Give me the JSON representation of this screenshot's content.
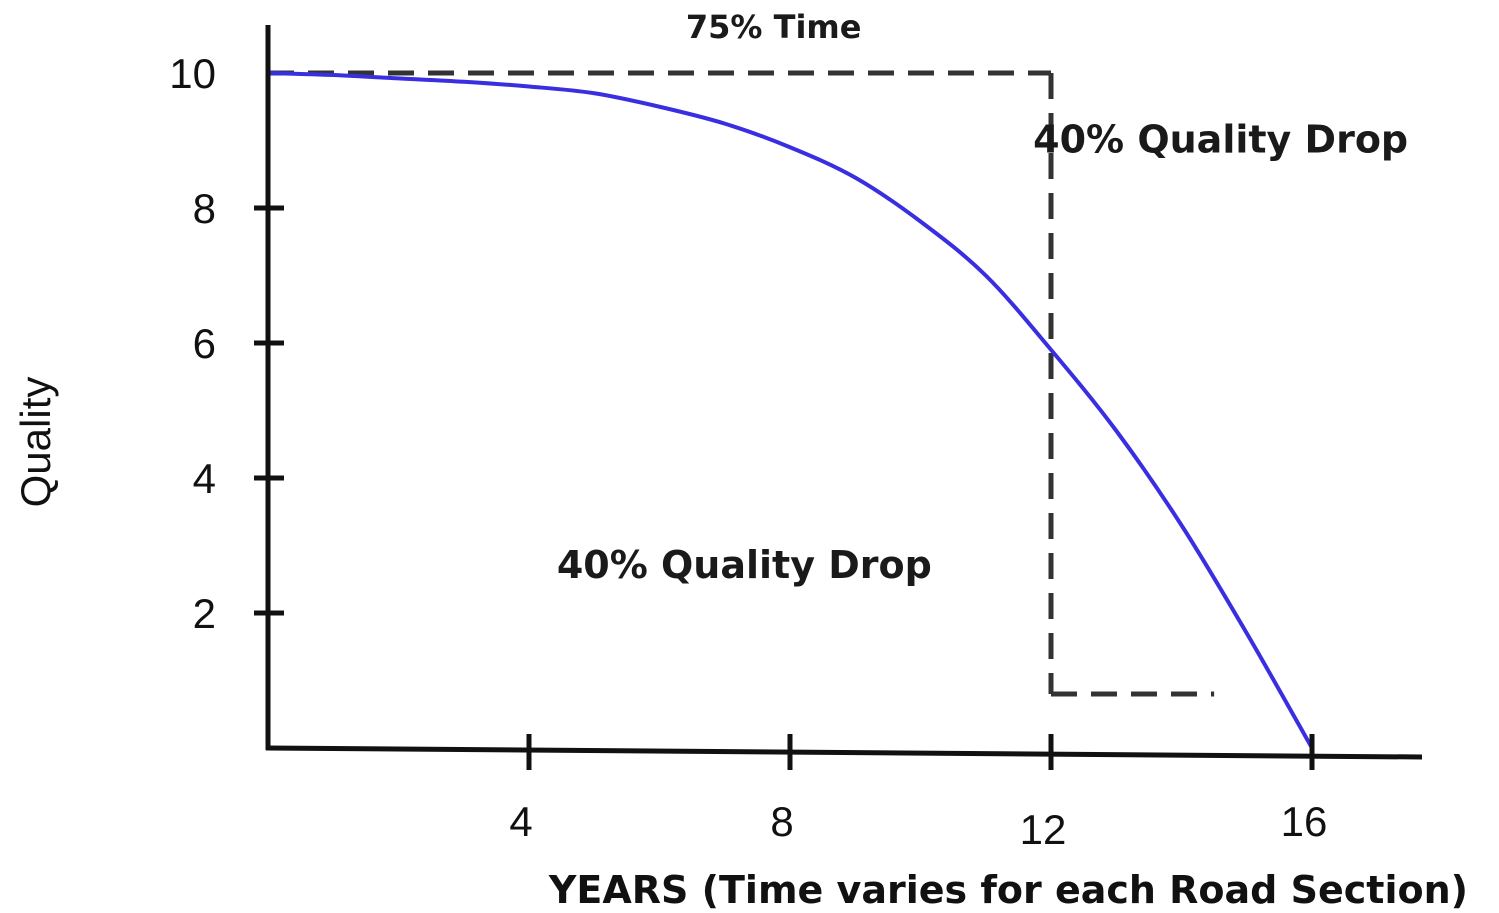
{
  "chart_data": {
    "type": "line",
    "title": "",
    "xlabel": "YEARS (Time varies for each Road Section)",
    "ylabel": "Quality",
    "xlim": [
      0,
      17.5
    ],
    "ylim": [
      0,
      10
    ],
    "x_ticks": [
      4,
      8,
      12,
      16
    ],
    "y_ticks": [
      2,
      4,
      6,
      8,
      10
    ],
    "grid": false,
    "series": [
      {
        "color": "#3a2fe0",
        "x": [
          0,
          1,
          2,
          3,
          4,
          5,
          6,
          7,
          8,
          9,
          10,
          11,
          12,
          13,
          14,
          15,
          16
        ],
        "y": [
          10,
          9.97,
          9.92,
          9.87,
          9.8,
          9.7,
          9.5,
          9.25,
          8.9,
          8.45,
          7.8,
          7.0,
          5.9,
          4.7,
          3.3,
          1.7,
          0
        ]
      }
    ],
    "reference_lines": [
      {
        "style": "dashed",
        "x": [
          0,
          12
        ],
        "y": [
          10,
          10
        ]
      },
      {
        "style": "dashed",
        "x": [
          12,
          12
        ],
        "y": [
          10,
          0.8
        ]
      },
      {
        "style": "dashed",
        "x": [
          12,
          14.5
        ],
        "y": [
          0.8,
          0.8
        ]
      }
    ],
    "annotations": [
      {
        "text": "75% Time",
        "x": 7.75,
        "y": 10.7
      },
      {
        "text": "40% Quality Drop",
        "x": 14.6,
        "y": 9.0
      },
      {
        "text": "40% Quality Drop",
        "x": 7.3,
        "y": 2.7
      }
    ]
  }
}
